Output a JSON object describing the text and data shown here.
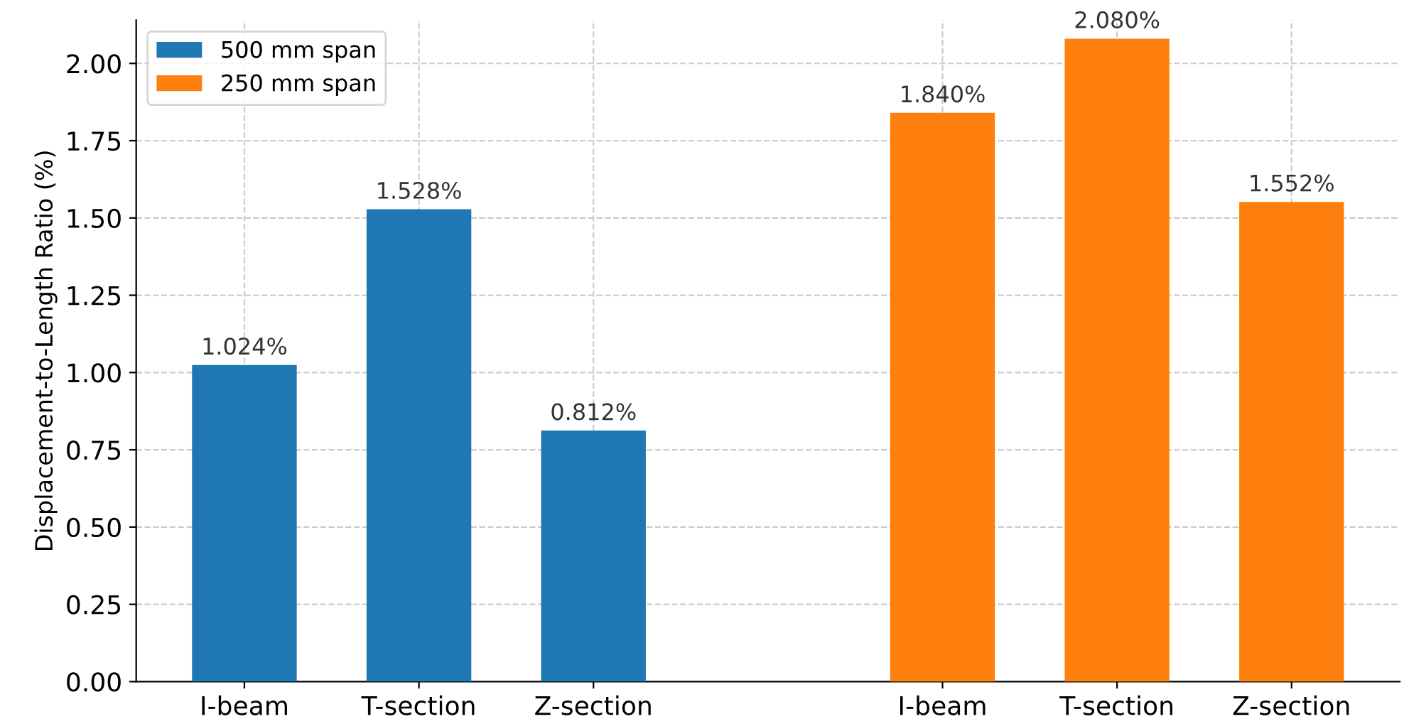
{
  "chart_data": {
    "type": "bar",
    "ylabel": "Displacement-to-Length Ratio (%)",
    "categories": [
      "I-beam",
      "T-section",
      "Z-section",
      null,
      "I-beam",
      "T-section",
      "Z-section"
    ],
    "series": [
      {
        "name": "500 mm span",
        "color": "#1f77b4",
        "values": [
          1.024,
          1.528,
          0.812,
          null,
          null,
          null,
          null
        ],
        "value_labels": [
          "1.024%",
          "1.528%",
          "0.812%",
          null,
          null,
          null,
          null
        ]
      },
      {
        "name": "250 mm span",
        "color": "#ff7f0e",
        "values": [
          null,
          null,
          null,
          null,
          1.84,
          2.08,
          1.552
        ],
        "value_labels": [
          null,
          null,
          null,
          null,
          "1.840%",
          "2.080%",
          "1.552%"
        ]
      }
    ],
    "ylim": [
      0,
      2.14
    ],
    "yticks": [
      {
        "value": 0,
        "label": "0.00"
      },
      {
        "value": 0.25,
        "label": "0.25"
      },
      {
        "value": 0.5,
        "label": "0.50"
      },
      {
        "value": 0.75,
        "label": "0.75"
      },
      {
        "value": 1,
        "label": "1.00"
      },
      {
        "value": 1.25,
        "label": "1.25"
      },
      {
        "value": 1.5,
        "label": "1.50"
      },
      {
        "value": 1.75,
        "label": "1.75"
      },
      {
        "value": 2,
        "label": "2.00"
      }
    ],
    "grid": true,
    "legend": "top left"
  }
}
